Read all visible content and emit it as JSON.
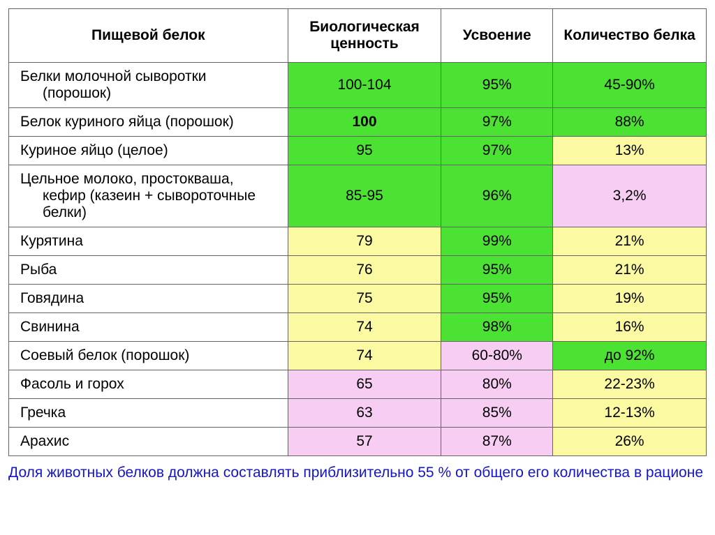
{
  "colors": {
    "green": "#4be234",
    "yellow": "#fbf9a2",
    "pink": "#f7cdf4",
    "white": "#ffffff"
  },
  "columns": {
    "c0": "Пищевой белок",
    "c1": "Биологическая ценность",
    "c2": "Усвоение",
    "c3": "Количество белка"
  },
  "col_widths": [
    "40%",
    "22%",
    "16%",
    "22%"
  ],
  "rows": [
    {
      "label_line1": "Белки молочной сыворотки",
      "label_line2": "(порошок)",
      "bv": "100-104",
      "bv_bg": "green",
      "bv_bold": false,
      "ab": "95%",
      "ab_bg": "green",
      "am": "45-90%",
      "am_bg": "green"
    },
    {
      "label_line1": "Белок куриного яйца (порошок)",
      "label_line2": "",
      "bv": "100",
      "bv_bg": "green",
      "bv_bold": true,
      "ab": "97%",
      "ab_bg": "green",
      "am": "88%",
      "am_bg": "green"
    },
    {
      "label_line1": "Куриное яйцо (целое)",
      "label_line2": "",
      "bv": "95",
      "bv_bg": "green",
      "bv_bold": false,
      "ab": "97%",
      "ab_bg": "green",
      "am": "13%",
      "am_bg": "yellow"
    },
    {
      "label_line1": "Цельное молоко, простокваша,",
      "label_line2": "кефир (казеин + сывороточные белки)",
      "bv": "85-95",
      "bv_bg": "green",
      "bv_bold": false,
      "ab": "96%",
      "ab_bg": "green",
      "am": "3,2%",
      "am_bg": "pink"
    },
    {
      "label_line1": "Курятина",
      "label_line2": "",
      "bv": "79",
      "bv_bg": "yellow",
      "bv_bold": false,
      "ab": "99%",
      "ab_bg": "green",
      "am": "21%",
      "am_bg": "yellow"
    },
    {
      "label_line1": "Рыба",
      "label_line2": "",
      "bv": "76",
      "bv_bg": "yellow",
      "bv_bold": false,
      "ab": "95%",
      "ab_bg": "green",
      "am": "21%",
      "am_bg": "yellow"
    },
    {
      "label_line1": "Говядина",
      "label_line2": "",
      "bv": "75",
      "bv_bg": "yellow",
      "bv_bold": false,
      "ab": "95%",
      "ab_bg": "green",
      "am": "19%",
      "am_bg": "yellow"
    },
    {
      "label_line1": "Свинина",
      "label_line2": "",
      "bv": "74",
      "bv_bg": "yellow",
      "bv_bold": false,
      "ab": "98%",
      "ab_bg": "green",
      "am": "16%",
      "am_bg": "yellow"
    },
    {
      "label_line1": "Соевый белок (порошок)",
      "label_line2": "",
      "bv": "74",
      "bv_bg": "yellow",
      "bv_bold": false,
      "ab": "60-80%",
      "ab_bg": "pink",
      "am": "до 92%",
      "am_bg": "green"
    },
    {
      "label_line1": "Фасоль и горох",
      "label_line2": "",
      "bv": "65",
      "bv_bg": "pink",
      "bv_bold": false,
      "ab": "80%",
      "ab_bg": "pink",
      "am": "22-23%",
      "am_bg": "yellow"
    },
    {
      "label_line1": "Гречка",
      "label_line2": "",
      "bv": "63",
      "bv_bg": "pink",
      "bv_bold": false,
      "ab": "85%",
      "ab_bg": "pink",
      "am": "12-13%",
      "am_bg": "yellow"
    },
    {
      "label_line1": "Арахис",
      "label_line2": "",
      "bv": "57",
      "bv_bg": "pink",
      "bv_bold": false,
      "ab": "87%",
      "ab_bg": "pink",
      "am": "26%",
      "am_bg": "yellow"
    }
  ],
  "caption": "Доля животных белков должна составлять приблизительно 55 % от общего его количества в рационе"
}
